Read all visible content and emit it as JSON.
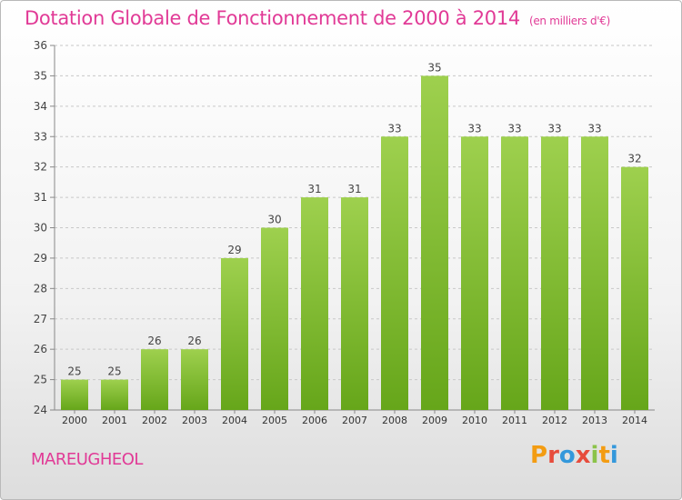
{
  "header": {
    "title": "Dotation Globale de Fonctionnement de 2000 à 2014",
    "unit": "(en milliers d'€)"
  },
  "footer": {
    "commune": "MAREUGHEOL",
    "logo_text": "Proxiti"
  },
  "colors": {
    "title": "#e13a96",
    "bar_light": "#9ed04e",
    "bar_dark": "#66a61a",
    "logo_letters": [
      "#f39c12",
      "#e74c3c",
      "#3498db",
      "#e74c3c",
      "#8bc34a",
      "#f39c12",
      "#3498db"
    ]
  },
  "chart_data": {
    "type": "bar",
    "title": "Dotation Globale de Fonctionnement de 2000 à 2014",
    "xlabel": "",
    "ylabel": "",
    "categories": [
      "2000",
      "2001",
      "2002",
      "2003",
      "2004",
      "2005",
      "2006",
      "2007",
      "2008",
      "2009",
      "2010",
      "2011",
      "2012",
      "2013",
      "2014"
    ],
    "values": [
      25,
      25,
      26,
      26,
      29,
      30,
      31,
      31,
      33,
      35,
      33,
      33,
      33,
      33,
      32
    ],
    "ylim": [
      24,
      36
    ],
    "yticks": [
      24,
      25,
      26,
      27,
      28,
      29,
      30,
      31,
      32,
      33,
      34,
      35,
      36
    ],
    "grid": true,
    "data_labels": true
  }
}
